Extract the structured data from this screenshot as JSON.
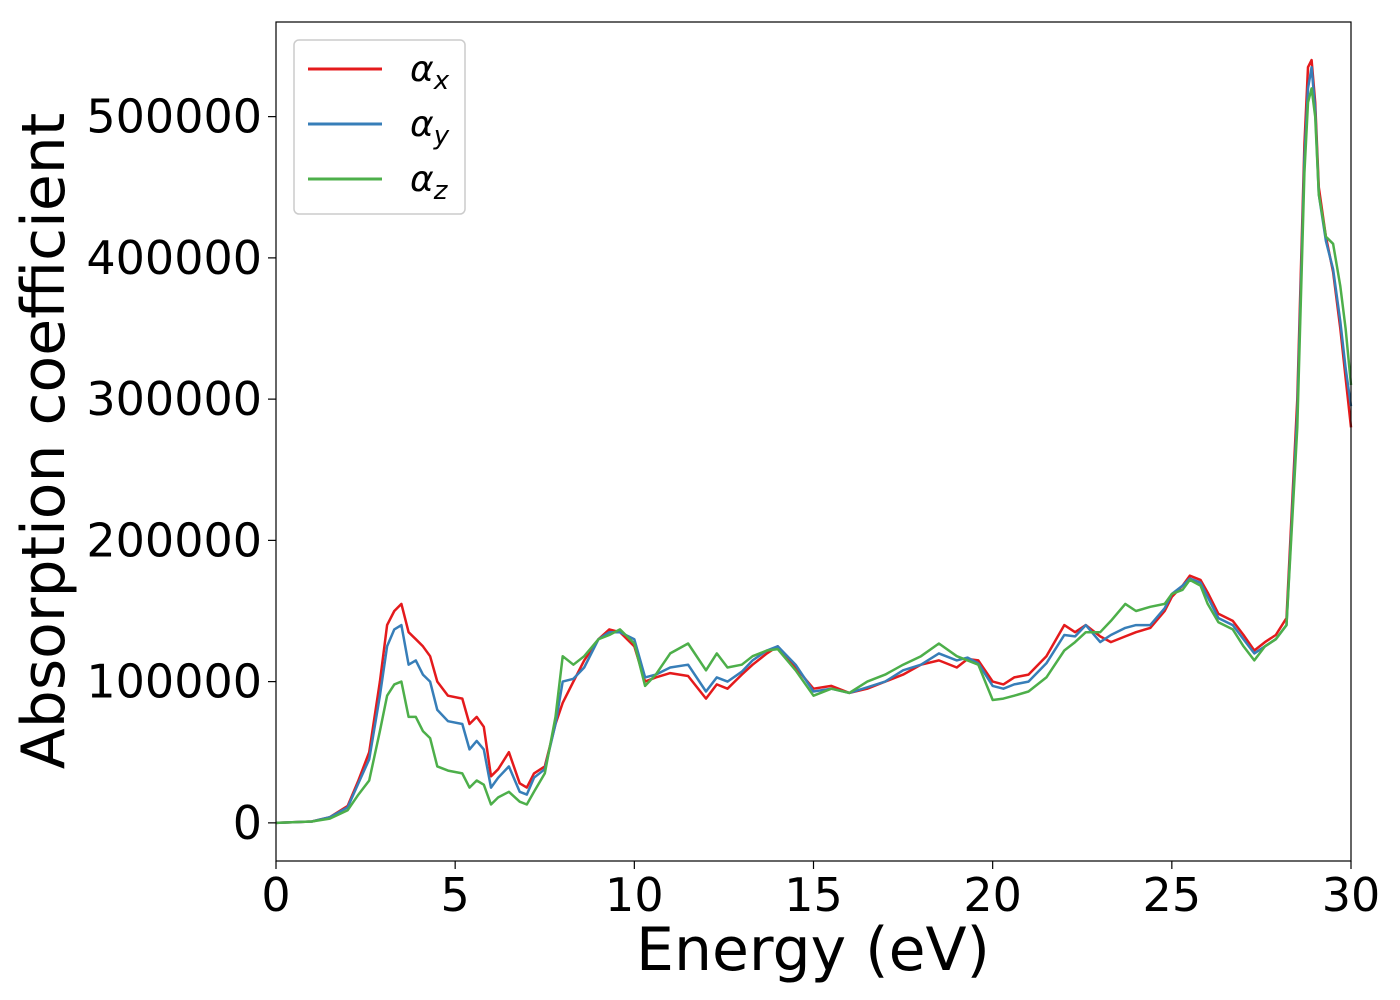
{
  "chart_data": {
    "type": "line",
    "title": "",
    "xlabel": "Energy (eV)",
    "ylabel": "Absorption coefficient",
    "xlim": [
      0,
      30
    ],
    "ylim": [
      -27000,
      567000
    ],
    "xticks": [
      0,
      5,
      10,
      15,
      20,
      25,
      30
    ],
    "yticks": [
      0,
      100000,
      200000,
      300000,
      400000,
      500000
    ],
    "grid": false,
    "legend_position": "top-left",
    "series": [
      {
        "name": "α_x",
        "label_base": "α",
        "label_sub": "x",
        "color": "#e41a1c",
        "x": [
          0,
          1,
          1.5,
          2,
          2.3,
          2.6,
          2.9,
          3.1,
          3.3,
          3.5,
          3.7,
          3.9,
          4.1,
          4.3,
          4.5,
          4.8,
          5.2,
          5.4,
          5.6,
          5.8,
          6.0,
          6.2,
          6.5,
          6.8,
          7.0,
          7.2,
          7.5,
          7.8,
          8.0,
          8.3,
          8.6,
          9.0,
          9.3,
          9.6,
          10.0,
          10.3,
          10.6,
          11.0,
          11.5,
          12.0,
          12.3,
          12.6,
          13.0,
          13.3,
          13.7,
          14.0,
          14.5,
          15.0,
          15.5,
          16.0,
          16.5,
          17.0,
          17.5,
          18.0,
          18.5,
          19.0,
          19.3,
          19.6,
          20.0,
          20.3,
          20.6,
          21.0,
          21.5,
          22.0,
          22.3,
          22.6,
          23.0,
          23.3,
          23.7,
          24.0,
          24.4,
          24.8,
          25.0,
          25.3,
          25.5,
          25.8,
          26.0,
          26.3,
          26.7,
          27.0,
          27.3,
          27.6,
          27.9,
          28.2,
          28.5,
          28.7,
          28.8,
          28.9,
          29.0,
          29.1,
          29.3,
          29.5,
          29.7,
          29.85,
          30.0
        ],
        "y": [
          0,
          1000,
          4000,
          12000,
          30000,
          50000,
          100000,
          140000,
          150000,
          155000,
          135000,
          130000,
          125000,
          118000,
          100000,
          90000,
          88000,
          70000,
          75000,
          68000,
          33000,
          38000,
          50000,
          28000,
          25000,
          35000,
          40000,
          70000,
          85000,
          100000,
          115000,
          130000,
          137000,
          135000,
          125000,
          100000,
          103000,
          106000,
          104000,
          88000,
          98000,
          95000,
          105000,
          112000,
          120000,
          125000,
          110000,
          95000,
          97000,
          92000,
          95000,
          100000,
          105000,
          112000,
          115000,
          110000,
          116000,
          115000,
          100000,
          98000,
          103000,
          105000,
          118000,
          140000,
          135000,
          140000,
          132000,
          128000,
          132000,
          135000,
          138000,
          150000,
          160000,
          168000,
          175000,
          172000,
          163000,
          148000,
          143000,
          133000,
          122000,
          128000,
          133000,
          145000,
          300000,
          480000,
          535000,
          540000,
          510000,
          450000,
          415000,
          390000,
          350000,
          315000,
          280000
        ]
      },
      {
        "name": "α_y",
        "label_base": "α",
        "label_sub": "y",
        "color": "#377eb8",
        "x": [
          0,
          1,
          1.5,
          2,
          2.3,
          2.6,
          2.9,
          3.1,
          3.3,
          3.5,
          3.7,
          3.9,
          4.1,
          4.3,
          4.5,
          4.8,
          5.2,
          5.4,
          5.6,
          5.8,
          6.0,
          6.2,
          6.5,
          6.8,
          7.0,
          7.2,
          7.5,
          7.8,
          8.0,
          8.3,
          8.6,
          9.0,
          9.3,
          9.6,
          10.0,
          10.3,
          10.6,
          11.0,
          11.5,
          12.0,
          12.3,
          12.6,
          13.0,
          13.3,
          13.7,
          14.0,
          14.5,
          15.0,
          15.5,
          16.0,
          16.5,
          17.0,
          17.5,
          18.0,
          18.5,
          19.0,
          19.3,
          19.6,
          20.0,
          20.3,
          20.6,
          21.0,
          21.5,
          22.0,
          22.3,
          22.6,
          23.0,
          23.3,
          23.7,
          24.0,
          24.4,
          24.8,
          25.0,
          25.3,
          25.5,
          25.8,
          26.0,
          26.3,
          26.7,
          27.0,
          27.3,
          27.6,
          27.9,
          28.2,
          28.5,
          28.7,
          28.8,
          28.9,
          29.0,
          29.1,
          29.3,
          29.5,
          29.7,
          29.85,
          30.0
        ],
        "y": [
          0,
          1000,
          4000,
          11000,
          28000,
          45000,
          90000,
          125000,
          137000,
          140000,
          112000,
          115000,
          105000,
          100000,
          80000,
          72000,
          70000,
          52000,
          58000,
          52000,
          25000,
          32000,
          40000,
          22000,
          20000,
          32000,
          38000,
          70000,
          100000,
          102000,
          110000,
          130000,
          135000,
          135000,
          130000,
          103000,
          105000,
          110000,
          112000,
          93000,
          103000,
          100000,
          107000,
          115000,
          122000,
          125000,
          112000,
          93000,
          95000,
          92000,
          96000,
          100000,
          108000,
          112000,
          120000,
          115000,
          117000,
          113000,
          97000,
          95000,
          98000,
          100000,
          113000,
          133000,
          132000,
          140000,
          128000,
          133000,
          138000,
          140000,
          140000,
          152000,
          162000,
          168000,
          173000,
          170000,
          160000,
          145000,
          140000,
          130000,
          120000,
          125000,
          130000,
          140000,
          290000,
          470000,
          520000,
          535000,
          505000,
          445000,
          412000,
          392000,
          355000,
          322000,
          295000
        ]
      },
      {
        "name": "α_z",
        "label_base": "α",
        "label_sub": "z",
        "color": "#4daf4a",
        "x": [
          0,
          1,
          1.5,
          2,
          2.3,
          2.6,
          2.9,
          3.1,
          3.3,
          3.5,
          3.7,
          3.9,
          4.1,
          4.3,
          4.5,
          4.8,
          5.2,
          5.4,
          5.6,
          5.8,
          6.0,
          6.2,
          6.5,
          6.8,
          7.0,
          7.2,
          7.5,
          7.8,
          8.0,
          8.3,
          8.6,
          9.0,
          9.3,
          9.6,
          10.0,
          10.3,
          10.6,
          11.0,
          11.5,
          12.0,
          12.3,
          12.6,
          13.0,
          13.3,
          13.7,
          14.0,
          14.5,
          15.0,
          15.5,
          16.0,
          16.5,
          17.0,
          17.5,
          18.0,
          18.5,
          19.0,
          19.3,
          19.6,
          20.0,
          20.3,
          20.6,
          21.0,
          21.5,
          22.0,
          22.3,
          22.6,
          23.0,
          23.3,
          23.7,
          24.0,
          24.4,
          24.8,
          25.0,
          25.3,
          25.5,
          25.8,
          26.0,
          26.3,
          26.7,
          27.0,
          27.3,
          27.6,
          27.9,
          28.2,
          28.5,
          28.7,
          28.8,
          28.9,
          29.0,
          29.1,
          29.3,
          29.5,
          29.7,
          29.85,
          30.0
        ],
        "y": [
          0,
          1000,
          3000,
          9000,
          20000,
          30000,
          65000,
          90000,
          98000,
          100000,
          75000,
          75000,
          65000,
          60000,
          40000,
          37000,
          35000,
          25000,
          30000,
          27000,
          13000,
          18000,
          22000,
          15000,
          13000,
          22000,
          35000,
          75000,
          118000,
          112000,
          118000,
          130000,
          133000,
          137000,
          127000,
          97000,
          105000,
          120000,
          127000,
          108000,
          120000,
          110000,
          112000,
          118000,
          122000,
          123000,
          108000,
          90000,
          95000,
          92000,
          100000,
          105000,
          112000,
          118000,
          127000,
          118000,
          115000,
          112000,
          87000,
          88000,
          90000,
          93000,
          103000,
          122000,
          128000,
          135000,
          135000,
          143000,
          155000,
          150000,
          153000,
          155000,
          162000,
          165000,
          172000,
          168000,
          155000,
          142000,
          137000,
          125000,
          115000,
          125000,
          130000,
          140000,
          280000,
          460000,
          510000,
          520000,
          500000,
          445000,
          415000,
          410000,
          380000,
          350000,
          310000
        ]
      }
    ]
  }
}
